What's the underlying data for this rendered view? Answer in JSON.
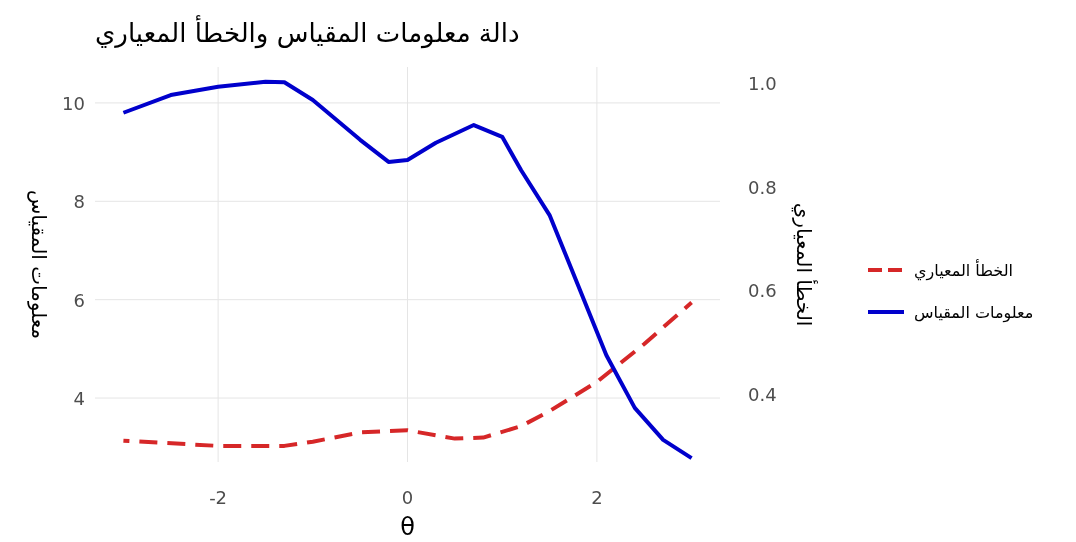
{
  "chart_data": {
    "type": "line",
    "title": "دالة معلومات المقياس والخطأ المعياري",
    "xlabel": "θ",
    "ylabel": "معلومات المقياس",
    "y2label": "الخطأ المعياري",
    "series": [
      {
        "name": "الخطأ المعياري",
        "color": "#d62728",
        "axis": "y2",
        "line_style": "dashed",
        "x": [
          -3,
          -2,
          -1.3,
          -1,
          -0.5,
          0,
          0.5,
          0.8,
          1.2,
          1.5,
          2,
          2.5,
          3
        ],
        "values": [
          0.311,
          0.301,
          0.301,
          0.309,
          0.327,
          0.331,
          0.315,
          0.317,
          0.339,
          0.368,
          0.424,
          0.497,
          0.577
        ]
      },
      {
        "name": "معلومات المقياس",
        "color": "#0000cc",
        "line_style": "solid",
        "x": [
          -3,
          -2.5,
          -2,
          -1.5,
          -1.3,
          -1,
          -0.5,
          -0.2,
          0,
          0.3,
          0.7,
          1,
          1.2,
          1.5,
          1.8,
          2.1,
          2.4,
          2.7,
          3
        ],
        "values": [
          9.8,
          10.16,
          10.33,
          10.43,
          10.42,
          10.06,
          9.25,
          8.8,
          8.84,
          9.19,
          9.55,
          9.31,
          8.63,
          7.72,
          6.3,
          4.87,
          3.8,
          3.15,
          2.78
        ]
      }
    ],
    "xlim": [
      -3.3,
      3.3
    ],
    "xticks": [
      -2,
      0,
      2
    ],
    "ylim": [
      2.7,
      10.73
    ],
    "yticks": [
      4,
      6,
      8,
      10
    ],
    "y2lim": [
      0.27,
      1.03
    ],
    "y2ticks": [
      0.4,
      0.6,
      0.8,
      {
        "value": 1,
        "label": "1.0"
      }
    ],
    "grid": true,
    "legend": "right"
  }
}
